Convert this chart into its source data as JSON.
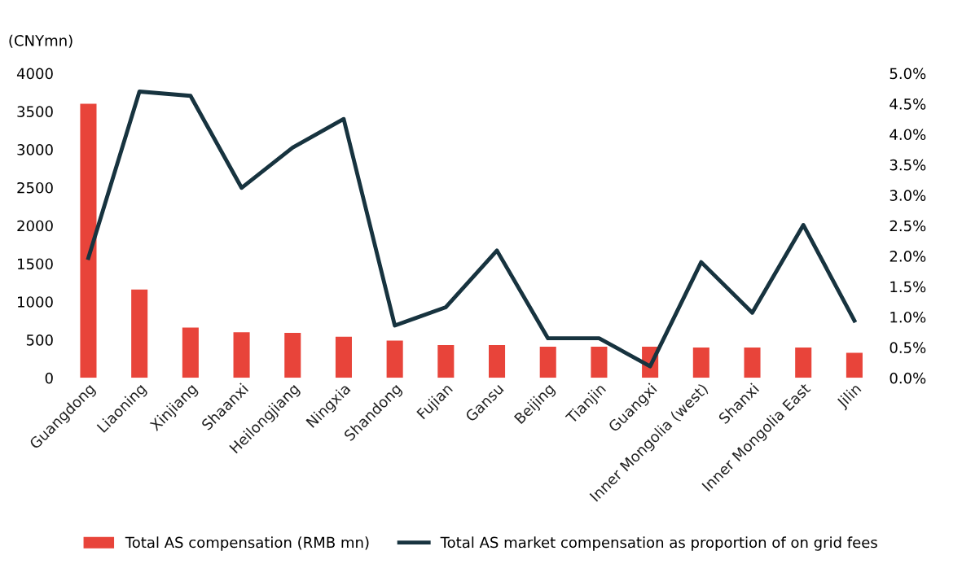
{
  "chart_data": {
    "type": "bar",
    "ylabel": "(CNYmn)",
    "categories": [
      "Guangdong",
      "Liaoning",
      "Xinjiang",
      "Shaanxi",
      "Heilongjiang",
      "Ningxia",
      "Shandong",
      "Fujian",
      "Gansu",
      "Beijing",
      "Tianjin",
      "Guangxi",
      "Inner Mongolia (west)",
      "Shanxi",
      "Inner Mongolia East",
      "Jilin"
    ],
    "series": [
      {
        "name": "Total AS compensation (RMB mn)",
        "color": "#e8443a",
        "values": [
          3600,
          1160,
          660,
          600,
          590,
          540,
          490,
          430,
          430,
          410,
          410,
          410,
          400,
          400,
          400,
          330
        ]
      },
      {
        "name": "Total AS market compensation as proportion of on grid fees",
        "type": "line",
        "axis": "y2",
        "color": "#17333f",
        "values": [
          1.97,
          4.7,
          4.63,
          3.12,
          3.78,
          4.25,
          0.86,
          1.16,
          2.09,
          0.65,
          0.65,
          0.19,
          1.9,
          1.07,
          2.51,
          0.94
        ]
      }
    ],
    "ylim": [
      0,
      4000
    ],
    "yticks": [
      0,
      500,
      1000,
      1500,
      2000,
      2500,
      3000,
      3500,
      4000
    ],
    "y2lim": [
      0,
      5
    ],
    "y2ticks": [
      {
        "value": 0,
        "label": "0.0%"
      },
      {
        "value": 0.5,
        "label": "0.5%"
      },
      {
        "value": 1,
        "label": "1.0%"
      },
      {
        "value": 1.5,
        "label": "1.5%"
      },
      {
        "value": 2,
        "label": "2.0%"
      },
      {
        "value": 2.5,
        "label": "2.5%"
      },
      {
        "value": 3,
        "label": "3.0%"
      },
      {
        "value": 3.5,
        "label": "3.5%"
      },
      {
        "value": 4,
        "label": "4.0%"
      },
      {
        "value": 4.5,
        "label": "4.5%"
      },
      {
        "value": 5,
        "label": "5.0%"
      }
    ],
    "grid": false,
    "legend": "bottom",
    "marker": "none",
    "line_style": "solid"
  }
}
